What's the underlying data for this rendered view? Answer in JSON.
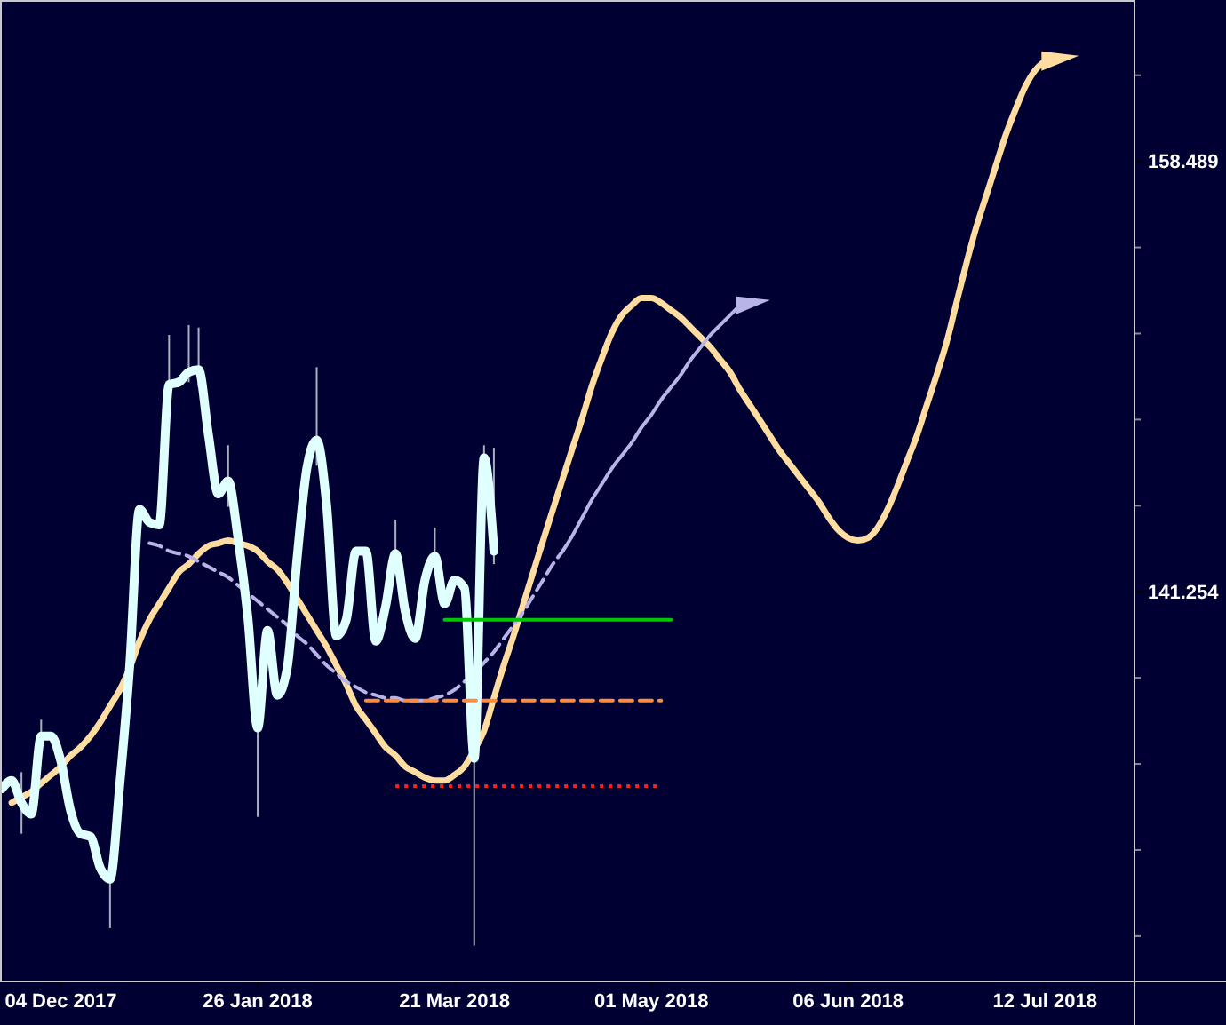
{
  "chart_data": {
    "type": "line",
    "log": "y",
    "categories": [
      null,
      null,
      null,
      null,
      null,
      null,
      "04 Dec 2017",
      null,
      null,
      null,
      null,
      null,
      null,
      null,
      null,
      null,
      null,
      null,
      null,
      null,
      null,
      null,
      null,
      null,
      null,
      null,
      "26 Jan 2018",
      null,
      null,
      null,
      null,
      null,
      null,
      null,
      null,
      null,
      null,
      null,
      null,
      null,
      null,
      null,
      null,
      null,
      null,
      null,
      "21 Mar 2018",
      null,
      null,
      null,
      null,
      null,
      null,
      null,
      null,
      null,
      null,
      null,
      null,
      null,
      null,
      null,
      null,
      null,
      null,
      null,
      "01 May 2018",
      null,
      null,
      null,
      null,
      null,
      null,
      null,
      null,
      null,
      null,
      null,
      null,
      null,
      null,
      null,
      null,
      null,
      null,
      null,
      "06 Jun 2018",
      null,
      null,
      null,
      null,
      null,
      null,
      null,
      null,
      null,
      null,
      null,
      null,
      null,
      null,
      null,
      null,
      null,
      null,
      null,
      "12 Jul 2018",
      null,
      null,
      null,
      null,
      null,
      null,
      null,
      null,
      null
    ],
    "ylim": [
      127.3,
      165.4
    ],
    "yticks": [
      {
        "value": 128.825,
        "label": null
      },
      {
        "value": 131.826,
        "label": null
      },
      {
        "value": 134.896,
        "label": null
      },
      {
        "value": 138.038,
        "label": null
      },
      141.254,
      {
        "value": 144.544,
        "label": null
      },
      {
        "value": 147.911,
        "label": null
      },
      {
        "value": 151.356,
        "label": null
      },
      {
        "value": 154.882,
        "label": null
      },
      158.489,
      {
        "value": 162.181,
        "label": null
      }
    ],
    "series": [
      {
        "color": "#ffdca0",
        "values": [
          null,
          133.5,
          133.7,
          133.9,
          134.2,
          134.5,
          134.8,
          135.2,
          135.5,
          135.9,
          136.4,
          137.0,
          137.6,
          138.4,
          139.4,
          140.2,
          140.8,
          141.4,
          142.0,
          142.3,
          142.7,
          143.0,
          143.1,
          143.2,
          143.1,
          143.0,
          142.8,
          142.4,
          142.1,
          141.6,
          141.0,
          140.4,
          139.8,
          139.2,
          138.5,
          137.8,
          137.0,
          136.5,
          136.0,
          135.5,
          135.2,
          134.8,
          134.6,
          134.4,
          134.3,
          134.3,
          134.5,
          134.8,
          135.4,
          136.1,
          137.3,
          138.5,
          139.6,
          140.8,
          142.0,
          143.2,
          144.4,
          145.6,
          146.8,
          148.0,
          149.3,
          150.4,
          151.4,
          152.1,
          152.5,
          152.8,
          152.8,
          152.6,
          152.3,
          152.0,
          151.6,
          151.2,
          150.8,
          150.3,
          149.8,
          149.1,
          148.5,
          147.9,
          147.3,
          146.7,
          146.2,
          145.7,
          145.2,
          144.7,
          144.1,
          143.6,
          143.3,
          143.2,
          143.3,
          143.7,
          144.4,
          145.3,
          146.3,
          147.3,
          148.5,
          149.7,
          151.0,
          152.6,
          154.2,
          155.7,
          157.0,
          158.3,
          159.6,
          160.7,
          161.7,
          162.4,
          162.8,
          null,
          null,
          null,
          null,
          null,
          null,
          null,
          null,
          null
        ]
      },
      {
        "color": "#b8b4e8",
        "line_style": "dashed",
        "values": [
          null,
          null,
          null,
          null,
          null,
          null,
          null,
          null,
          null,
          null,
          null,
          null,
          null,
          null,
          null,
          143.1,
          143.0,
          142.8,
          142.7,
          142.6,
          142.4,
          142.2,
          142.0,
          141.8,
          141.5,
          141.2,
          140.9,
          140.6,
          140.3,
          140.0,
          139.6,
          139.3,
          138.9,
          138.5,
          138.2,
          137.9,
          137.7,
          137.5,
          137.4,
          137.3,
          137.3,
          137.2,
          137.2,
          137.2,
          137.3,
          137.4,
          137.6,
          137.9,
          138.2,
          138.6,
          139.0,
          139.5,
          140.0,
          140.5,
          141.1,
          141.7,
          142.3,
          142.8,
          null,
          null,
          null,
          null,
          null,
          null,
          null,
          null,
          null,
          null,
          null,
          null,
          null,
          null,
          null,
          null,
          null,
          null,
          null,
          null,
          null,
          null,
          null,
          null,
          null,
          null,
          null,
          null,
          null,
          null,
          null,
          null,
          null,
          null,
          null,
          null,
          null,
          null,
          null,
          null,
          null,
          null,
          null,
          null,
          null,
          null,
          null,
          null,
          null,
          null,
          null,
          null,
          null,
          null,
          null,
          null,
          null,
          null
        ]
      },
      {
        "color": "#b8b4e8",
        "values": [
          null,
          null,
          null,
          null,
          null,
          null,
          null,
          null,
          null,
          null,
          null,
          null,
          null,
          null,
          null,
          null,
          null,
          null,
          null,
          null,
          null,
          null,
          null,
          null,
          null,
          null,
          null,
          null,
          null,
          null,
          null,
          null,
          null,
          null,
          null,
          null,
          null,
          null,
          null,
          null,
          null,
          null,
          null,
          null,
          null,
          null,
          null,
          null,
          null,
          null,
          null,
          null,
          null,
          null,
          null,
          null,
          null,
          142.8,
          143.4,
          144.1,
          144.8,
          145.4,
          146.0,
          146.5,
          147.0,
          147.6,
          148.1,
          148.7,
          149.2,
          149.7,
          150.3,
          150.8,
          151.3,
          151.7,
          152.1,
          152.5,
          null,
          null,
          null,
          null,
          null,
          null,
          null,
          null,
          null,
          null,
          null,
          null,
          null,
          null,
          null,
          null,
          null,
          null,
          null,
          null,
          null,
          null,
          null,
          null,
          null,
          null,
          null,
          null,
          null,
          null,
          null,
          null,
          null,
          null,
          null,
          null,
          null,
          null,
          null,
          null
        ]
      },
      {
        "color": "#e0ffff",
        "values": [
          134.0,
          134.3,
          133.5,
          133.1,
          135.9,
          135.9,
          135.0,
          133.2,
          132.4,
          132.3,
          131.2,
          130.8,
          134.2,
          138.5,
          144.4,
          143.9,
          143.8,
          149.3,
          149.4,
          149.8,
          149.9,
          147.3,
          145.0,
          145.5,
          143.3,
          140.3,
          136.2,
          139.8,
          137.4,
          138.4,
          142.5,
          146.0,
          147.1,
          144.6,
          139.6,
          140.2,
          142.8,
          142.8,
          139.4,
          140.7,
          142.7,
          140.5,
          139.5,
          141.7,
          142.6,
          140.8,
          141.7,
          141.4,
          135.1,
          146.4,
          142.8,
          null,
          null,
          null,
          null,
          null,
          null,
          null,
          null,
          null,
          null,
          null,
          null,
          null,
          null,
          null,
          null,
          null,
          null,
          null,
          null,
          null,
          null,
          null,
          null,
          null,
          null,
          null,
          null,
          null,
          null,
          null,
          null,
          null,
          null,
          null,
          null,
          null,
          null,
          null,
          null,
          null,
          null,
          null,
          null,
          null,
          null,
          null,
          null,
          null,
          null,
          null,
          null,
          null,
          null,
          null,
          null,
          null,
          null,
          null,
          null,
          null,
          null,
          null,
          null,
          null
        ],
        "errors": [
          null,
          null,
          [
            132.4,
            134.6
          ],
          null,
          [
            135.2,
            136.5
          ],
          null,
          null,
          null,
          null,
          null,
          null,
          [
            129.1,
            131.2
          ],
          null,
          null,
          null,
          null,
          null,
          [
            148.8,
            151.3
          ],
          null,
          [
            149.4,
            151.7
          ],
          [
            149.2,
            151.6
          ],
          null,
          null,
          [
            144.5,
            146.9
          ],
          null,
          null,
          [
            133.0,
            136.5
          ],
          null,
          null,
          null,
          null,
          null,
          [
            146.1,
            150.0
          ],
          null,
          null,
          null,
          null,
          null,
          null,
          null,
          [
            142.7,
            144.0
          ],
          null,
          null,
          null,
          [
            142.0,
            143.7
          ],
          null,
          null,
          null,
          [
            128.5,
            135.6
          ],
          [
            145.9,
            146.9
          ],
          [
            142.3,
            146.8
          ],
          null,
          null,
          null,
          null,
          null,
          null,
          null,
          null,
          null,
          null,
          null,
          null,
          null,
          null,
          null,
          null,
          null,
          null,
          null,
          null,
          null,
          null,
          null,
          null,
          null,
          null,
          null,
          null,
          null,
          null,
          null,
          null,
          null,
          null,
          null,
          null,
          null,
          null,
          null,
          null,
          null,
          null,
          null,
          null,
          null,
          null,
          null,
          null,
          null,
          null,
          null,
          null,
          null,
          null,
          null,
          null,
          null,
          null,
          null,
          null,
          null,
          null,
          null,
          null,
          null
        ]
      },
      {
        "color": "#00c800",
        "values": [
          null,
          null,
          null,
          null,
          null,
          null,
          null,
          null,
          null,
          null,
          null,
          null,
          null,
          null,
          null,
          null,
          null,
          null,
          null,
          null,
          null,
          null,
          null,
          null,
          null,
          null,
          null,
          null,
          null,
          null,
          null,
          null,
          null,
          null,
          null,
          null,
          null,
          null,
          null,
          null,
          null,
          null,
          null,
          null,
          null,
          140.2,
          140.2,
          140.2,
          140.2,
          140.2,
          140.2,
          140.2,
          140.2,
          140.2,
          140.2,
          140.2,
          140.2,
          140.2,
          140.2,
          140.2,
          140.2,
          140.2,
          140.2,
          140.2,
          140.2,
          140.2,
          140.2,
          140.2,
          140.2,
          null,
          null,
          null,
          null,
          null,
          null,
          null,
          null,
          null,
          null,
          null,
          null,
          null,
          null,
          null,
          null,
          null,
          null,
          null,
          null,
          null,
          null,
          null,
          null,
          null,
          null,
          null,
          null,
          null,
          null,
          null,
          null,
          null,
          null,
          null,
          null,
          null,
          null,
          null,
          null,
          null,
          null,
          null,
          null,
          null,
          null,
          null
        ]
      },
      {
        "color": "#ff8c3c",
        "line_style": "dashed",
        "values": [
          null,
          null,
          null,
          null,
          null,
          null,
          null,
          null,
          null,
          null,
          null,
          null,
          null,
          null,
          null,
          null,
          null,
          null,
          null,
          null,
          null,
          null,
          null,
          null,
          null,
          null,
          null,
          null,
          null,
          null,
          null,
          null,
          null,
          null,
          null,
          null,
          null,
          137.2,
          137.2,
          137.2,
          137.2,
          137.2,
          137.2,
          137.2,
          137.2,
          137.2,
          137.2,
          137.2,
          137.2,
          137.2,
          137.2,
          137.2,
          137.2,
          137.2,
          137.2,
          137.2,
          137.2,
          137.2,
          137.2,
          137.2,
          137.2,
          137.2,
          137.2,
          137.2,
          137.2,
          137.2,
          137.2,
          137.2,
          null,
          null,
          null,
          null,
          null,
          null,
          null,
          null,
          null,
          null,
          null,
          null,
          null,
          null,
          null,
          null,
          null,
          null,
          null,
          null,
          null,
          null,
          null,
          null,
          null,
          null,
          null,
          null,
          null,
          null,
          null,
          null,
          null,
          null,
          null,
          null,
          null,
          null,
          null,
          null,
          null,
          null,
          null,
          null,
          null,
          null,
          null,
          null
        ]
      },
      {
        "color": "#ff1e1e",
        "line_style": "dotted",
        "values": [
          null,
          null,
          null,
          null,
          null,
          null,
          null,
          null,
          null,
          null,
          null,
          null,
          null,
          null,
          null,
          null,
          null,
          null,
          null,
          null,
          null,
          null,
          null,
          null,
          null,
          null,
          null,
          null,
          null,
          null,
          null,
          null,
          null,
          null,
          null,
          null,
          null,
          null,
          null,
          null,
          134.1,
          134.1,
          134.1,
          134.1,
          134.1,
          134.1,
          134.1,
          134.1,
          134.1,
          134.1,
          134.1,
          134.1,
          134.1,
          134.1,
          134.1,
          134.1,
          134.1,
          134.1,
          134.1,
          134.1,
          134.1,
          134.1,
          134.1,
          134.1,
          134.1,
          134.1,
          134.1,
          134.1,
          null,
          null,
          null,
          null,
          null,
          null,
          null,
          null,
          null,
          null,
          null,
          null,
          null,
          null,
          null,
          null,
          null,
          null,
          null,
          null,
          null,
          null,
          null,
          null,
          null,
          null,
          null,
          null,
          null,
          null,
          null,
          null,
          null,
          null,
          null,
          null,
          null,
          null,
          null,
          null,
          null,
          null,
          null,
          null,
          null,
          null,
          null,
          null
        ]
      }
    ]
  }
}
